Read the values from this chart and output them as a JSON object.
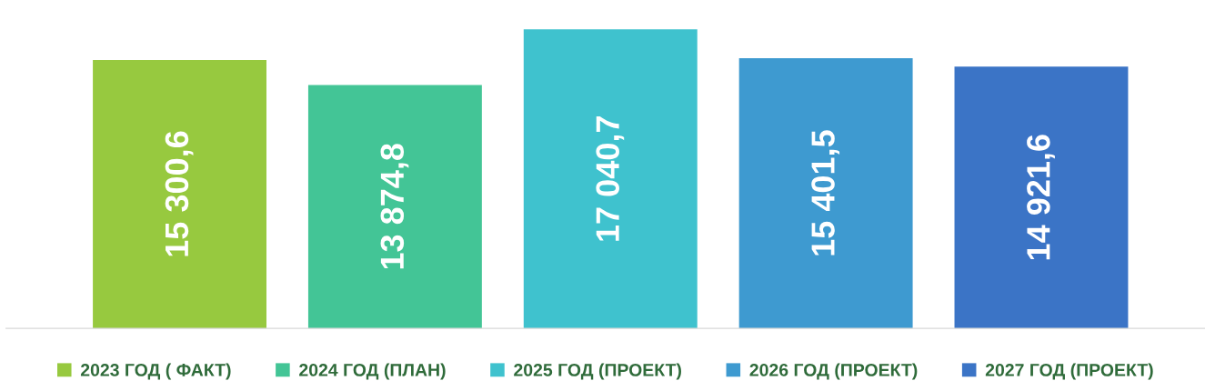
{
  "chart_data": {
    "type": "bar",
    "categories": [
      null
    ],
    "series": [
      {
        "name": "2023 ГОД ( ФАКТ)",
        "color": "#97c93f",
        "values": [
          15300.6
        ],
        "value_labels": [
          "15 300,6"
        ]
      },
      {
        "name": "2024 ГОД (ПЛАН)",
        "color": "#43c596",
        "values": [
          13874.8
        ],
        "value_labels": [
          "13 874,8"
        ]
      },
      {
        "name": "2025 ГОД (ПРОЕКТ)",
        "color": "#3fc2ce",
        "values": [
          17040.7
        ],
        "value_labels": [
          "17 040,7"
        ]
      },
      {
        "name": "2026 ГОД (ПРОЕКТ)",
        "color": "#3e9ad0",
        "values": [
          15401.5
        ],
        "value_labels": [
          "15 401,5"
        ]
      },
      {
        "name": "2027 ГОД (ПРОЕКТ)",
        "color": "#3b74c6",
        "values": [
          14921.6
        ],
        "value_labels": [
          "14 921,6"
        ]
      }
    ],
    "legend": "bottom"
  }
}
